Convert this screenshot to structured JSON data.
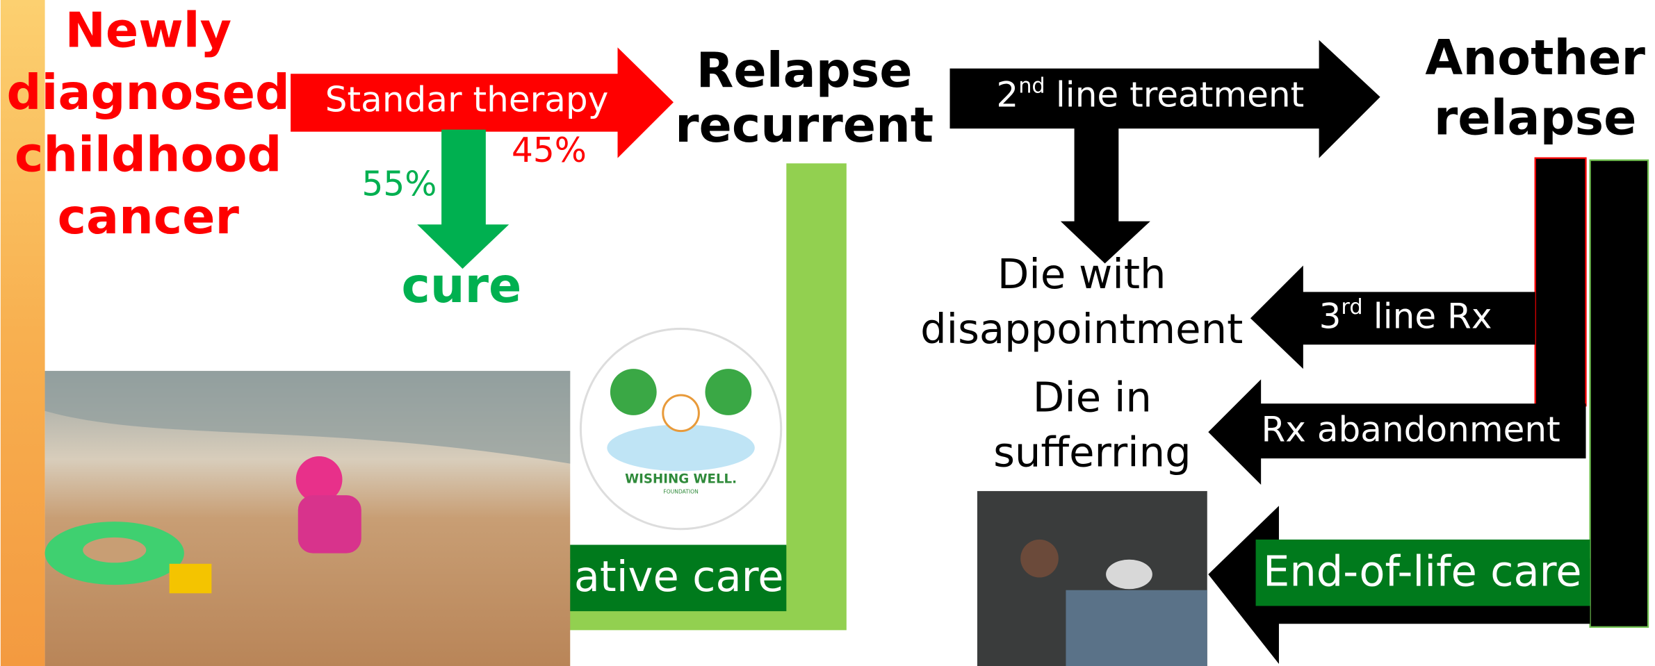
{
  "title": {
    "lines": [
      "Newly",
      "diagnosed",
      "childhood",
      "cancer"
    ]
  },
  "first_line": {
    "label": "Standar therapy",
    "relapse_percent": "45%",
    "cure_percent": "55%",
    "cure": "cure"
  },
  "relapse": {
    "lines": [
      "Relapse",
      "recurrent"
    ]
  },
  "palliative": {
    "label": "Palliative care"
  },
  "second_line": {
    "number": "2",
    "suffix": "nd",
    "text": "line treatment"
  },
  "another_relapse": {
    "lines": [
      "Another",
      "relapse"
    ]
  },
  "die_disappointment": {
    "lines": [
      "Die with",
      "disappointment"
    ]
  },
  "die_suffering": {
    "lines": [
      "Die in",
      "sufferring"
    ]
  },
  "third_line": {
    "number": "3",
    "suffix": "rd",
    "text": "line Rx"
  },
  "abandonment": {
    "label": "Rx abandonment"
  },
  "end_of_life": {
    "label": "End-of-life care"
  },
  "logo": {
    "name": "WISHING WELL.",
    "sub": "FOUNDATION"
  }
}
